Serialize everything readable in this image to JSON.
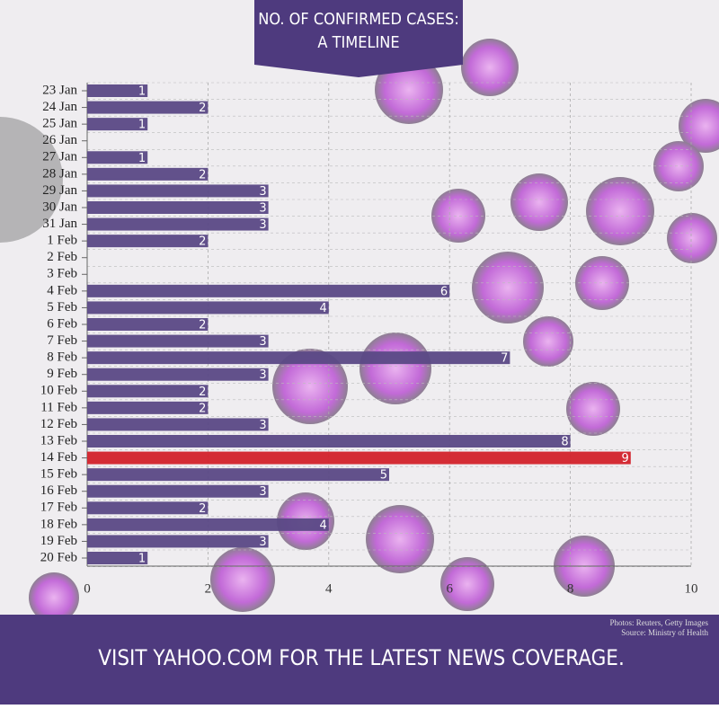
{
  "chart_data": {
    "type": "bar",
    "orientation": "horizontal",
    "title": [
      "NO. OF CONFIRMED CASES:",
      "A TIMELINE"
    ],
    "categories": [
      "23 Jan",
      "24 Jan",
      "25 Jan",
      "26 Jan",
      "27 Jan",
      "28 Jan",
      "29 Jan",
      "30 Jan",
      "31 Jan",
      "1 Feb",
      "2 Feb",
      "3 Feb",
      "4 Feb",
      "5 Feb",
      "6 Feb",
      "7 Feb",
      "8 Feb",
      "9 Feb",
      "10 Feb",
      "11 Feb",
      "12 Feb",
      "13 Feb",
      "14 Feb",
      "15 Feb",
      "16 Feb",
      "17 Feb",
      "18 Feb",
      "19 Feb",
      "20 Feb"
    ],
    "values": [
      1,
      2,
      1,
      0,
      1,
      2,
      3,
      3,
      3,
      2,
      0,
      0,
      6,
      4,
      2,
      3,
      7,
      3,
      2,
      2,
      3,
      8,
      9,
      5,
      3,
      2,
      4,
      3,
      1
    ],
    "colors": [
      "#5a4985",
      "#5a4985",
      "#5a4985",
      "#5a4985",
      "#5a4985",
      "#5a4985",
      "#5a4985",
      "#5a4985",
      "#5a4985",
      "#5a4985",
      "#5a4985",
      "#5a4985",
      "#5a4985",
      "#5a4985",
      "#5a4985",
      "#5a4985",
      "#5a4985",
      "#5a4985",
      "#5a4985",
      "#5a4985",
      "#5a4985",
      "#5a4985",
      "#d2222a",
      "#5a4985",
      "#5a4985",
      "#5a4985",
      "#5a4985",
      "#5a4985",
      "#5a4985"
    ],
    "xlim": [
      0,
      10
    ],
    "xticks": [
      0,
      2,
      4,
      6,
      8,
      10
    ],
    "grid": true
  },
  "credits": [
    "Photos: Reuters, Getty Images",
    "Source: Ministry of Health"
  ],
  "footer": "VISIT YAHOO.COM FOR THE LATEST NEWS COVERAGE."
}
